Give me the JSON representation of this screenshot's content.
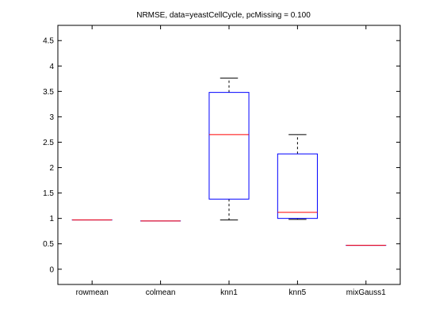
{
  "chart_data": {
    "type": "boxplot",
    "title": "NRMSE, data=yeastCellCycle, pcMissing = 0.100",
    "xlabel": "",
    "ylabel": "",
    "categories": [
      "rowmean",
      "colmean",
      "knn1",
      "knn5",
      "mixGauss1"
    ],
    "ylim": [
      -0.3,
      4.8
    ],
    "yticks": [
      0,
      0.5,
      1,
      1.5,
      2,
      2.5,
      3,
      3.5,
      4,
      4.5
    ],
    "ytick_labels": [
      "0",
      "0.5",
      "1",
      "1.5",
      "2",
      "2.5",
      "3",
      "3.5",
      "4",
      "4.5"
    ],
    "boxes": [
      {
        "category": "rowmean",
        "whisker_low": 0.97,
        "q1": 0.97,
        "median": 0.97,
        "q3": 0.97,
        "whisker_high": 0.97
      },
      {
        "category": "colmean",
        "whisker_low": 0.95,
        "q1": 0.95,
        "median": 0.95,
        "q3": 0.95,
        "whisker_high": 0.95
      },
      {
        "category": "knn1",
        "whisker_low": 0.97,
        "q1": 1.38,
        "median": 2.65,
        "q3": 3.48,
        "whisker_high": 3.76
      },
      {
        "category": "knn5",
        "whisker_low": 0.98,
        "q1": 1.0,
        "median": 1.12,
        "q3": 2.27,
        "whisker_high": 2.65
      },
      {
        "category": "mixGauss1",
        "whisker_low": 0.47,
        "q1": 0.47,
        "median": 0.47,
        "q3": 0.47,
        "whisker_high": 0.47
      }
    ],
    "colors": {
      "box": "#0000ff",
      "median": "#ff0000",
      "whisker": "#000000",
      "axes": "#000000",
      "background": "#ffffff"
    }
  }
}
